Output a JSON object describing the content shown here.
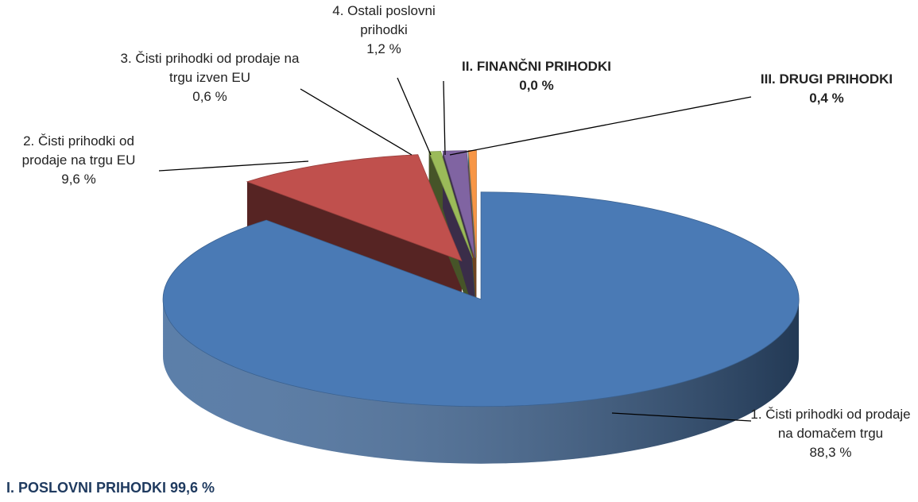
{
  "chart_data": {
    "type": "pie",
    "categories": [
      "1. Čisti prihodki od prodaje na domačem trgu",
      "2. Čisti prihodki od prodaje na trgu EU",
      "3. Čisti prihodki od prodaje na trgu izven EU",
      "4. Ostali poslovni prihodki",
      "II. FINANČNI PRIHODKI",
      "III. DRUGI PRIHODKI"
    ],
    "values": [
      88.3,
      9.6,
      0.6,
      1.2,
      0.0,
      0.4
    ],
    "value_labels": [
      "88,3 %",
      "9,6 %",
      "0,6 %",
      "1,2 %",
      "0,0 %",
      "0,4 %"
    ],
    "colors": [
      "#4a7ab5",
      "#c0504d",
      "#9bbb59",
      "#8064a2",
      "#4bacc6",
      "#f79646"
    ],
    "annotation": "I. POSLOVNI PRIHODKI 99,6 %"
  }
}
